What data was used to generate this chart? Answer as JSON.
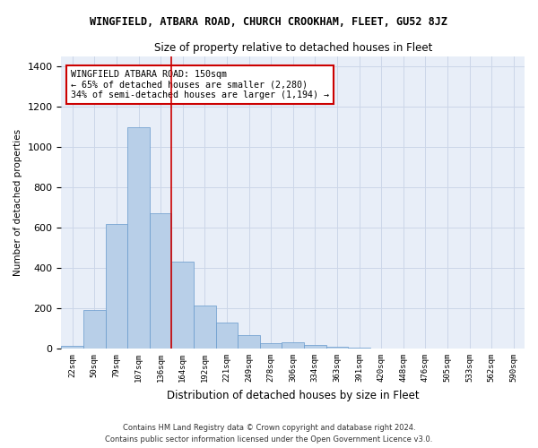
{
  "title": "WINGFIELD, ATBARA ROAD, CHURCH CROOKHAM, FLEET, GU52 8JZ",
  "subtitle": "Size of property relative to detached houses in Fleet",
  "xlabel": "Distribution of detached houses by size in Fleet",
  "ylabel": "Number of detached properties",
  "footer_line1": "Contains HM Land Registry data © Crown copyright and database right 2024.",
  "footer_line2": "Contains public sector information licensed under the Open Government Licence v3.0.",
  "categories": [
    "22sqm",
    "50sqm",
    "79sqm",
    "107sqm",
    "136sqm",
    "164sqm",
    "192sqm",
    "221sqm",
    "249sqm",
    "278sqm",
    "306sqm",
    "334sqm",
    "363sqm",
    "391sqm",
    "420sqm",
    "448sqm",
    "476sqm",
    "505sqm",
    "533sqm",
    "562sqm",
    "590sqm"
  ],
  "values": [
    15,
    190,
    620,
    1100,
    670,
    430,
    215,
    130,
    65,
    25,
    30,
    18,
    10,
    5,
    2,
    2,
    2,
    2,
    2,
    2,
    2
  ],
  "bar_color": "#b8cfe8",
  "bar_edge_color": "#6699cc",
  "grid_color": "#ccd6e8",
  "background_color": "#e8eef8",
  "annotation_text": "WINGFIELD ATBARA ROAD: 150sqm\n← 65% of detached houses are smaller (2,280)\n34% of semi-detached houses are larger (1,194) →",
  "vline_x_index": 4.5,
  "vline_color": "#cc0000",
  "annotation_box_edge_color": "#cc0000",
  "ylim": [
    0,
    1450
  ],
  "yticks": [
    0,
    200,
    400,
    600,
    800,
    1000,
    1200,
    1400
  ]
}
